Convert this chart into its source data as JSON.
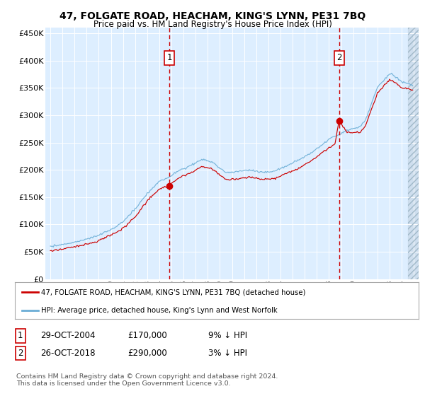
{
  "title": "47, FOLGATE ROAD, HEACHAM, KING'S LYNN, PE31 7BQ",
  "subtitle": "Price paid vs. HM Land Registry's House Price Index (HPI)",
  "legend_entry1": "47, FOLGATE ROAD, HEACHAM, KING'S LYNN, PE31 7BQ (detached house)",
  "legend_entry2": "HPI: Average price, detached house, King's Lynn and West Norfolk",
  "footnote": "Contains HM Land Registry data © Crown copyright and database right 2024.\nThis data is licensed under the Open Government Licence v3.0.",
  "table_row1": [
    "1",
    "29-OCT-2004",
    "£170,000",
    "9% ↓ HPI"
  ],
  "table_row2": [
    "2",
    "26-OCT-2018",
    "£290,000",
    "3% ↓ HPI"
  ],
  "purchase1_year": 2004.83,
  "purchase1_price": 170000,
  "purchase2_year": 2018.83,
  "purchase2_price": 290000,
  "ylim": [
    0,
    460000
  ],
  "yticks": [
    0,
    50000,
    100000,
    150000,
    200000,
    250000,
    300000,
    350000,
    400000,
    450000
  ],
  "xlim_left": 1994.6,
  "xlim_right": 2025.4,
  "hatch_start": 2024.5,
  "plot_bg": "#ddeeff",
  "hpi_color": "#6baed6",
  "price_color": "#cc0000",
  "marker_color": "#cc0000"
}
